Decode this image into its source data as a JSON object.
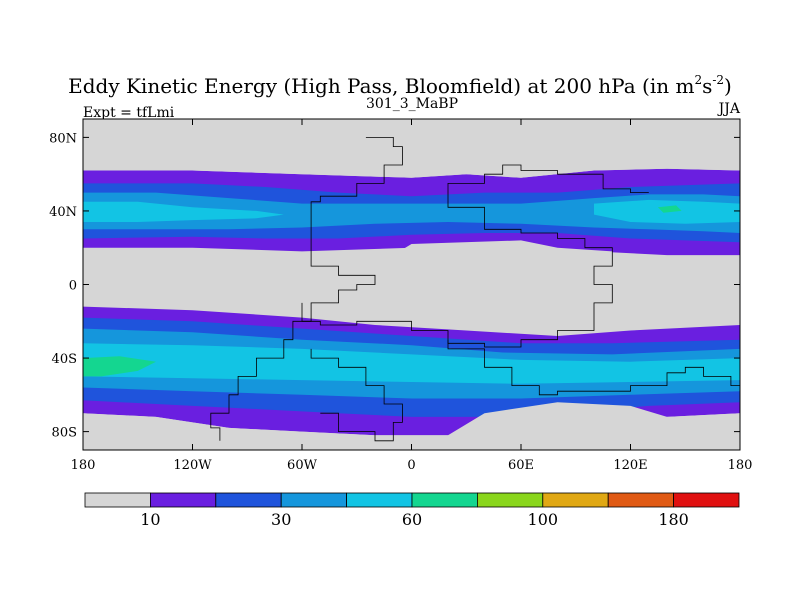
{
  "chart_data": {
    "type": "heatmap",
    "title": "Eddy Kinetic Energy (High Pass, Bloomfield) at 200 hPa (in m",
    "title_units": {
      "m_exp": "2",
      "s": "s",
      "s_exp": "-2",
      "close": ")"
    },
    "left_label": "Expt = tfLmi",
    "center_label": "301_3_MaBP",
    "right_label": "JJA",
    "xlabel": "",
    "ylabel": "",
    "xlim": [
      -180,
      180
    ],
    "ylim": [
      -90,
      90
    ],
    "x_ticks": [
      {
        "value": -180,
        "label": "180"
      },
      {
        "value": -120,
        "label": "120W"
      },
      {
        "value": -60,
        "label": "60W"
      },
      {
        "value": 0,
        "label": "0"
      },
      {
        "value": 60,
        "label": "60E"
      },
      {
        "value": 120,
        "label": "120E"
      },
      {
        "value": 180,
        "label": "180"
      }
    ],
    "y_ticks": [
      {
        "value": 80,
        "label": "80N"
      },
      {
        "value": 40,
        "label": "40N"
      },
      {
        "value": 0,
        "label": "0"
      },
      {
        "value": -40,
        "label": "40S"
      },
      {
        "value": -80,
        "label": "80S"
      }
    ],
    "colorbar": {
      "colors": [
        "#d6d6d6",
        "#6a1fe0",
        "#1f54dc",
        "#1596dc",
        "#12c4e4",
        "#14d690",
        "#8ad61c",
        "#e0a814",
        "#e05a14",
        "#e01010"
      ],
      "labels": [
        {
          "after_box": 1,
          "label": "10"
        },
        {
          "after_box": 3,
          "label": "30"
        },
        {
          "after_box": 5,
          "label": "60"
        },
        {
          "after_box": 7,
          "label": "100"
        },
        {
          "after_box": 9,
          "label": "180"
        }
      ]
    },
    "contour_regions": [
      {
        "level": 1,
        "name": "nh-storm-band-10",
        "points": [
          [
            -180,
            62
          ],
          [
            -120,
            62
          ],
          [
            -60,
            60
          ],
          [
            0,
            58
          ],
          [
            30,
            60
          ],
          [
            60,
            58
          ],
          [
            100,
            62
          ],
          [
            140,
            63
          ],
          [
            180,
            62
          ],
          [
            180,
            16
          ],
          [
            140,
            16
          ],
          [
            100,
            18
          ],
          [
            60,
            20
          ],
          [
            30,
            22
          ],
          [
            0,
            20
          ],
          [
            -60,
            18
          ],
          [
            -120,
            20
          ],
          [
            -180,
            20
          ]
        ]
      },
      {
        "level": 2,
        "name": "nh-storm-band-20",
        "points": [
          [
            -180,
            55
          ],
          [
            -120,
            55
          ],
          [
            -80,
            53
          ],
          [
            -40,
            50
          ],
          [
            0,
            48
          ],
          [
            40,
            50
          ],
          [
            80,
            50
          ],
          [
            120,
            53
          ],
          [
            180,
            55
          ],
          [
            180,
            23
          ],
          [
            120,
            25
          ],
          [
            80,
            28
          ],
          [
            40,
            28
          ],
          [
            0,
            27
          ],
          [
            -40,
            25
          ],
          [
            -80,
            25
          ],
          [
            -120,
            26
          ],
          [
            -180,
            25
          ]
        ]
      },
      {
        "level": 3,
        "name": "nh-storm-band-30",
        "points": [
          [
            -180,
            50
          ],
          [
            -140,
            50
          ],
          [
            -100,
            47
          ],
          [
            -60,
            44
          ],
          [
            -20,
            44
          ],
          [
            20,
            44
          ],
          [
            60,
            44
          ],
          [
            100,
            47
          ],
          [
            130,
            49
          ],
          [
            160,
            49
          ],
          [
            180,
            48
          ],
          [
            180,
            28
          ],
          [
            160,
            29
          ],
          [
            130,
            30
          ],
          [
            100,
            31
          ],
          [
            60,
            33
          ],
          [
            20,
            34
          ],
          [
            -20,
            33
          ],
          [
            -60,
            31
          ],
          [
            -100,
            30
          ],
          [
            -140,
            30
          ],
          [
            -180,
            30
          ]
        ]
      },
      {
        "level": 4,
        "name": "nh-core-pacific-west",
        "points": [
          [
            -180,
            45
          ],
          [
            -150,
            45
          ],
          [
            -120,
            42
          ],
          [
            -85,
            40
          ],
          [
            -70,
            38
          ],
          [
            -85,
            36
          ],
          [
            -120,
            35
          ],
          [
            -150,
            34
          ],
          [
            -180,
            34
          ]
        ]
      },
      {
        "level": 4,
        "name": "nh-core-pacific-east",
        "points": [
          [
            100,
            44
          ],
          [
            130,
            46
          ],
          [
            160,
            45
          ],
          [
            180,
            44
          ],
          [
            180,
            34
          ],
          [
            150,
            33
          ],
          [
            120,
            34
          ],
          [
            100,
            38
          ]
        ]
      },
      {
        "level": 5,
        "name": "nh-max-pacific",
        "points": [
          [
            135,
            42
          ],
          [
            145,
            43
          ],
          [
            148,
            40
          ],
          [
            138,
            39
          ]
        ]
      },
      {
        "level": 1,
        "name": "sh-storm-band-10",
        "points": [
          [
            -180,
            -12
          ],
          [
            -120,
            -14
          ],
          [
            -60,
            -18
          ],
          [
            -20,
            -22
          ],
          [
            30,
            -25
          ],
          [
            80,
            -28
          ],
          [
            120,
            -25
          ],
          [
            180,
            -22
          ],
          [
            180,
            -70
          ],
          [
            140,
            -72
          ],
          [
            100,
            -75
          ],
          [
            60,
            -80
          ],
          [
            20,
            -82
          ],
          [
            -20,
            -82
          ],
          [
            -60,
            -80
          ],
          [
            -100,
            -78
          ],
          [
            -140,
            -72
          ],
          [
            -180,
            -70
          ]
        ]
      },
      {
        "level": 2,
        "name": "sh-storm-band-20",
        "points": [
          [
            -180,
            -18
          ],
          [
            -120,
            -20
          ],
          [
            -60,
            -24
          ],
          [
            0,
            -28
          ],
          [
            60,
            -32
          ],
          [
            110,
            -32
          ],
          [
            180,
            -30
          ],
          [
            180,
            -64
          ],
          [
            130,
            -66
          ],
          [
            80,
            -70
          ],
          [
            40,
            -72
          ],
          [
            0,
            -72
          ],
          [
            -40,
            -70
          ],
          [
            -80,
            -68
          ],
          [
            -120,
            -66
          ],
          [
            -180,
            -63
          ]
        ]
      },
      {
        "level": 3,
        "name": "sh-storm-band-30",
        "points": [
          [
            -180,
            -24
          ],
          [
            -120,
            -26
          ],
          [
            -60,
            -30
          ],
          [
            0,
            -33
          ],
          [
            50,
            -37
          ],
          [
            110,
            -38
          ],
          [
            180,
            -35
          ],
          [
            180,
            -58
          ],
          [
            120,
            -60
          ],
          [
            60,
            -62
          ],
          [
            0,
            -62
          ],
          [
            -60,
            -60
          ],
          [
            -120,
            -58
          ],
          [
            -180,
            -56
          ]
        ]
      },
      {
        "level": 4,
        "name": "sh-core",
        "points": [
          [
            -180,
            -32
          ],
          [
            -120,
            -33
          ],
          [
            -60,
            -35
          ],
          [
            0,
            -38
          ],
          [
            60,
            -41
          ],
          [
            120,
            -42
          ],
          [
            180,
            -40
          ],
          [
            180,
            -52
          ],
          [
            120,
            -53
          ],
          [
            60,
            -54
          ],
          [
            0,
            -53
          ],
          [
            -60,
            -52
          ],
          [
            -120,
            -51
          ],
          [
            -180,
            -50
          ]
        ]
      },
      {
        "level": 5,
        "name": "sh-max-pacific",
        "points": [
          [
            -180,
            -40
          ],
          [
            -160,
            -39
          ],
          [
            -140,
            -42
          ],
          [
            -150,
            -47
          ],
          [
            -170,
            -50
          ],
          [
            -180,
            -50
          ]
        ]
      },
      {
        "level": 0,
        "name": "tropical-minimum-west",
        "points": [
          [
            -180,
            15
          ],
          [
            -150,
            15
          ],
          [
            -130,
            12
          ],
          [
            -180,
            10
          ]
        ]
      },
      {
        "level": 0,
        "name": "tropical-minimum-central",
        "points": [
          [
            -60,
            14
          ],
          [
            -20,
            10
          ],
          [
            0,
            22
          ],
          [
            60,
            24
          ],
          [
            80,
            20
          ],
          [
            110,
            18
          ],
          [
            110,
            5
          ],
          [
            80,
            0
          ],
          [
            40,
            -10
          ],
          [
            0,
            -15
          ],
          [
            -30,
            -10
          ],
          [
            -50,
            -5
          ],
          [
            -70,
            -10
          ],
          [
            -55,
            0
          ],
          [
            -30,
            5
          ]
        ]
      },
      {
        "level": 0,
        "name": "tropical-minimum-east",
        "points": [
          [
            110,
            10
          ],
          [
            130,
            12
          ],
          [
            150,
            8
          ],
          [
            180,
            8
          ],
          [
            180,
            -2
          ],
          [
            150,
            -5
          ],
          [
            120,
            -8
          ],
          [
            110,
            -2
          ]
        ]
      },
      {
        "level": 0,
        "name": "polar-cap-north",
        "points": [
          [
            -180,
            90
          ],
          [
            180,
            90
          ],
          [
            180,
            62
          ],
          [
            140,
            63
          ],
          [
            100,
            62
          ],
          [
            60,
            58
          ],
          [
            30,
            60
          ],
          [
            0,
            58
          ],
          [
            -60,
            60
          ],
          [
            -120,
            62
          ],
          [
            -180,
            62
          ]
        ]
      },
      {
        "level": 0,
        "name": "polar-cap-south",
        "points": [
          [
            -180,
            -85
          ],
          [
            180,
            -85
          ],
          [
            180,
            -70
          ],
          [
            140,
            -72
          ],
          [
            120,
            -66
          ],
          [
            80,
            -64
          ],
          [
            40,
            -70
          ],
          [
            20,
            -82
          ],
          [
            -20,
            -82
          ],
          [
            -60,
            -80
          ],
          [
            -100,
            -78
          ],
          [
            -140,
            -72
          ],
          [
            -180,
            -70
          ]
        ]
      }
    ],
    "outlines": [
      {
        "name": "continent-americas",
        "points": [
          [
            -105,
            -85
          ],
          [
            -110,
            -78
          ],
          [
            -100,
            -70
          ],
          [
            -95,
            -60
          ],
          [
            -85,
            -50
          ],
          [
            -70,
            -40
          ],
          [
            -65,
            -30
          ],
          [
            -55,
            -20
          ],
          [
            -40,
            -10
          ],
          [
            -30,
            -3
          ],
          [
            -20,
            0
          ],
          [
            -40,
            5
          ],
          [
            -55,
            10
          ],
          [
            -55,
            35
          ],
          [
            -50,
            45
          ],
          [
            -30,
            48
          ],
          [
            -15,
            55
          ],
          [
            -5,
            65
          ],
          [
            -10,
            75
          ],
          [
            -25,
            80
          ]
        ]
      },
      {
        "name": "continent-africa-eurasia",
        "points": [
          [
            -60,
            -10
          ],
          [
            -50,
            -20
          ],
          [
            -30,
            -22
          ],
          [
            0,
            -20
          ],
          [
            20,
            -25
          ],
          [
            40,
            -32
          ],
          [
            60,
            -34
          ],
          [
            80,
            -30
          ],
          [
            100,
            -25
          ],
          [
            110,
            -10
          ],
          [
            100,
            0
          ],
          [
            110,
            10
          ],
          [
            95,
            20
          ],
          [
            80,
            25
          ],
          [
            60,
            28
          ],
          [
            40,
            30
          ],
          [
            20,
            42
          ],
          [
            40,
            55
          ],
          [
            50,
            60
          ],
          [
            60,
            65
          ],
          [
            80,
            62
          ],
          [
            105,
            60
          ],
          [
            120,
            52
          ],
          [
            130,
            50
          ]
        ]
      },
      {
        "name": "subcontinent-south-america",
        "points": [
          [
            -55,
            -35
          ],
          [
            -40,
            -40
          ],
          [
            -25,
            -45
          ],
          [
            -15,
            -55
          ],
          [
            -5,
            -65
          ],
          [
            -10,
            -75
          ],
          [
            -20,
            -85
          ],
          [
            -40,
            -80
          ],
          [
            -50,
            -70
          ]
        ]
      },
      {
        "name": "subcontinent-africa-south",
        "points": [
          [
            20,
            -30
          ],
          [
            40,
            -35
          ],
          [
            55,
            -45
          ],
          [
            70,
            -55
          ],
          [
            80,
            -60
          ],
          [
            120,
            -58
          ],
          [
            140,
            -55
          ],
          [
            150,
            -48
          ],
          [
            160,
            -45
          ],
          [
            175,
            -50
          ],
          [
            180,
            -55
          ]
        ]
      }
    ]
  }
}
